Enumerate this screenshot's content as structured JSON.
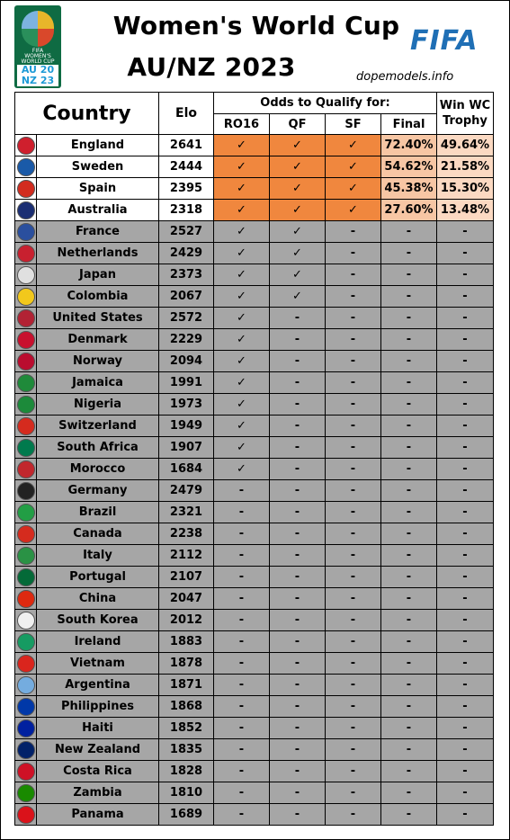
{
  "header": {
    "title_line1": "Women's World Cup",
    "title_line2": "AU/NZ 2023",
    "brand": "FIFA",
    "credit": "dopemodels.info",
    "logo_text": [
      "FIFA",
      "WOMEN'S",
      "WORLD CUP"
    ],
    "logo_year": [
      "AU 20",
      "NZ 23"
    ]
  },
  "table_headers": {
    "country": "Country",
    "elo": "Elo",
    "odds_group": "Odds to Qualify for:",
    "ro16": "RO16",
    "qf": "QF",
    "sf": "SF",
    "final": "Final",
    "win_line1": "Win WC",
    "win_line2": "Trophy"
  },
  "colors": {
    "qualified": "#f0873e",
    "final_cell": "#f7c6a4",
    "win_cell": "#fbd9c2",
    "eliminated_row": "#a6a6a6"
  },
  "chart_data": {
    "type": "table",
    "columns": [
      "Country",
      "Elo",
      "RO16",
      "QF",
      "SF",
      "Final",
      "Win WC Trophy"
    ],
    "rows": [
      {
        "country": "England",
        "elo": "2641",
        "ro16": "✓",
        "qf": "✓",
        "sf": "✓",
        "final": "72.40%",
        "win": "49.64%",
        "flag": "#cf1f2d"
      },
      {
        "country": "Sweden",
        "elo": "2444",
        "ro16": "✓",
        "qf": "✓",
        "sf": "✓",
        "final": "54.62%",
        "win": "21.58%",
        "flag": "#1a5aa8"
      },
      {
        "country": "Spain",
        "elo": "2395",
        "ro16": "✓",
        "qf": "✓",
        "sf": "✓",
        "final": "45.38%",
        "win": "15.30%",
        "flag": "#d22c1f"
      },
      {
        "country": "Australia",
        "elo": "2318",
        "ro16": "✓",
        "qf": "✓",
        "sf": "✓",
        "final": "27.60%",
        "win": "13.48%",
        "flag": "#1b2e73"
      },
      {
        "country": "France",
        "elo": "2527",
        "ro16": "✓",
        "qf": "✓",
        "sf": "-",
        "final": "-",
        "win": "-",
        "flag": "#2a4f9e"
      },
      {
        "country": "Netherlands",
        "elo": "2429",
        "ro16": "✓",
        "qf": "✓",
        "sf": "-",
        "final": "-",
        "win": "-",
        "flag": "#c8202f"
      },
      {
        "country": "Japan",
        "elo": "2373",
        "ro16": "✓",
        "qf": "✓",
        "sf": "-",
        "final": "-",
        "win": "-",
        "flag": "#e0e0e0"
      },
      {
        "country": "Colombia",
        "elo": "2067",
        "ro16": "✓",
        "qf": "✓",
        "sf": "-",
        "final": "-",
        "win": "-",
        "flag": "#f2c81c"
      },
      {
        "country": "United States",
        "elo": "2572",
        "ro16": "✓",
        "qf": "-",
        "sf": "-",
        "final": "-",
        "win": "-",
        "flag": "#b22234"
      },
      {
        "country": "Denmark",
        "elo": "2229",
        "ro16": "✓",
        "qf": "-",
        "sf": "-",
        "final": "-",
        "win": "-",
        "flag": "#c8102e"
      },
      {
        "country": "Norway",
        "elo": "2094",
        "ro16": "✓",
        "qf": "-",
        "sf": "-",
        "final": "-",
        "win": "-",
        "flag": "#ba0c2f"
      },
      {
        "country": "Jamaica",
        "elo": "1991",
        "ro16": "✓",
        "qf": "-",
        "sf": "-",
        "final": "-",
        "win": "-",
        "flag": "#1f8a3a"
      },
      {
        "country": "Nigeria",
        "elo": "1973",
        "ro16": "✓",
        "qf": "-",
        "sf": "-",
        "final": "-",
        "win": "-",
        "flag": "#1c8a3a"
      },
      {
        "country": "Switzerland",
        "elo": "1949",
        "ro16": "✓",
        "qf": "-",
        "sf": "-",
        "final": "-",
        "win": "-",
        "flag": "#d52b1e"
      },
      {
        "country": "South Africa",
        "elo": "1907",
        "ro16": "✓",
        "qf": "-",
        "sf": "-",
        "final": "-",
        "win": "-",
        "flag": "#007a4d"
      },
      {
        "country": "Morocco",
        "elo": "1684",
        "ro16": "✓",
        "qf": "-",
        "sf": "-",
        "final": "-",
        "win": "-",
        "flag": "#c1272d"
      },
      {
        "country": "Germany",
        "elo": "2479",
        "ro16": "-",
        "qf": "-",
        "sf": "-",
        "final": "-",
        "win": "-",
        "flag": "#222222"
      },
      {
        "country": "Brazil",
        "elo": "2321",
        "ro16": "-",
        "qf": "-",
        "sf": "-",
        "final": "-",
        "win": "-",
        "flag": "#229e45"
      },
      {
        "country": "Canada",
        "elo": "2238",
        "ro16": "-",
        "qf": "-",
        "sf": "-",
        "final": "-",
        "win": "-",
        "flag": "#d52b1e"
      },
      {
        "country": "Italy",
        "elo": "2112",
        "ro16": "-",
        "qf": "-",
        "sf": "-",
        "final": "-",
        "win": "-",
        "flag": "#2a9245"
      },
      {
        "country": "Portugal",
        "elo": "2107",
        "ro16": "-",
        "qf": "-",
        "sf": "-",
        "final": "-",
        "win": "-",
        "flag": "#046a38"
      },
      {
        "country": "China",
        "elo": "2047",
        "ro16": "-",
        "qf": "-",
        "sf": "-",
        "final": "-",
        "win": "-",
        "flag": "#de2910"
      },
      {
        "country": "South Korea",
        "elo": "2012",
        "ro16": "-",
        "qf": "-",
        "sf": "-",
        "final": "-",
        "win": "-",
        "flag": "#f0f0f0"
      },
      {
        "country": "Ireland",
        "elo": "1883",
        "ro16": "-",
        "qf": "-",
        "sf": "-",
        "final": "-",
        "win": "-",
        "flag": "#169b62"
      },
      {
        "country": "Vietnam",
        "elo": "1878",
        "ro16": "-",
        "qf": "-",
        "sf": "-",
        "final": "-",
        "win": "-",
        "flag": "#da251d"
      },
      {
        "country": "Argentina",
        "elo": "1871",
        "ro16": "-",
        "qf": "-",
        "sf": "-",
        "final": "-",
        "win": "-",
        "flag": "#74acdf"
      },
      {
        "country": "Philippines",
        "elo": "1868",
        "ro16": "-",
        "qf": "-",
        "sf": "-",
        "final": "-",
        "win": "-",
        "flag": "#0038a8"
      },
      {
        "country": "Haiti",
        "elo": "1852",
        "ro16": "-",
        "qf": "-",
        "sf": "-",
        "final": "-",
        "win": "-",
        "flag": "#00209f"
      },
      {
        "country": "New Zealand",
        "elo": "1835",
        "ro16": "-",
        "qf": "-",
        "sf": "-",
        "final": "-",
        "win": "-",
        "flag": "#012169"
      },
      {
        "country": "Costa Rica",
        "elo": "1828",
        "ro16": "-",
        "qf": "-",
        "sf": "-",
        "final": "-",
        "win": "-",
        "flag": "#ce1126"
      },
      {
        "country": "Zambia",
        "elo": "1810",
        "ro16": "-",
        "qf": "-",
        "sf": "-",
        "final": "-",
        "win": "-",
        "flag": "#198a00"
      },
      {
        "country": "Panama",
        "elo": "1689",
        "ro16": "-",
        "qf": "-",
        "sf": "-",
        "final": "-",
        "win": "-",
        "flag": "#da121a"
      }
    ]
  }
}
